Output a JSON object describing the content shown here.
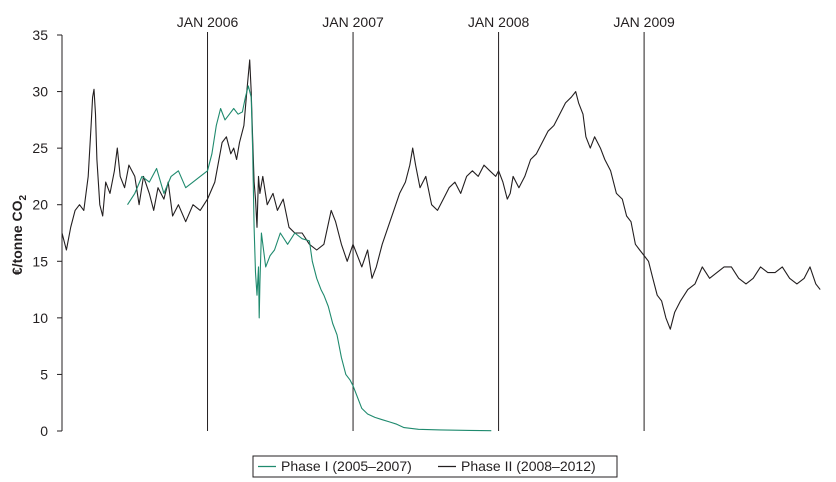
{
  "chart_data": {
    "type": "line",
    "title": "",
    "xlabel": "",
    "ylabel": "€/tonne CO",
    "ylabel_subscript": "2",
    "ylim": [
      0,
      35
    ],
    "yticks": [
      0,
      5,
      10,
      15,
      20,
      25,
      30,
      35
    ],
    "grid": false,
    "legend_position": "bottom-center",
    "x_range_years": [
      2005.0,
      2010.25
    ],
    "vertical_markers": [
      {
        "label": "JAN 2006",
        "x": 2006.0
      },
      {
        "label": "JAN 2007",
        "x": 2007.0
      },
      {
        "label": "JAN 2008",
        "x": 2008.0
      },
      {
        "label": "JAN 2009",
        "x": 2009.0
      }
    ],
    "series": [
      {
        "name": "Phase I (2005–2007)",
        "color": "#1f8a6e",
        "points": [
          [
            2005.45,
            20.0
          ],
          [
            2005.5,
            21.0
          ],
          [
            2005.55,
            22.5
          ],
          [
            2005.6,
            22.0
          ],
          [
            2005.65,
            23.2
          ],
          [
            2005.7,
            21.0
          ],
          [
            2005.75,
            22.5
          ],
          [
            2005.8,
            23.0
          ],
          [
            2005.85,
            21.5
          ],
          [
            2005.9,
            22.0
          ],
          [
            2005.95,
            22.5
          ],
          [
            2006.0,
            23.0
          ],
          [
            2006.03,
            24.5
          ],
          [
            2006.06,
            27.0
          ],
          [
            2006.09,
            28.5
          ],
          [
            2006.12,
            27.5
          ],
          [
            2006.15,
            28.0
          ],
          [
            2006.18,
            28.5
          ],
          [
            2006.21,
            28.0
          ],
          [
            2006.24,
            28.2
          ],
          [
            2006.26,
            29.5
          ],
          [
            2006.28,
            30.5
          ],
          [
            2006.3,
            29.5
          ],
          [
            2006.31,
            25.0
          ],
          [
            2006.32,
            18.0
          ],
          [
            2006.33,
            14.0
          ],
          [
            2006.34,
            12.0
          ],
          [
            2006.35,
            14.5
          ],
          [
            2006.355,
            10.0
          ],
          [
            2006.36,
            13.0
          ],
          [
            2006.37,
            17.5
          ],
          [
            2006.4,
            14.5
          ],
          [
            2006.43,
            15.5
          ],
          [
            2006.46,
            16.0
          ],
          [
            2006.5,
            17.5
          ],
          [
            2006.55,
            16.5
          ],
          [
            2006.6,
            17.5
          ],
          [
            2006.65,
            17.0
          ],
          [
            2006.7,
            16.8
          ],
          [
            2006.72,
            15.0
          ],
          [
            2006.75,
            13.5
          ],
          [
            2006.78,
            12.5
          ],
          [
            2006.8,
            12.0
          ],
          [
            2006.83,
            11.0
          ],
          [
            2006.86,
            9.5
          ],
          [
            2006.89,
            8.5
          ],
          [
            2006.92,
            6.5
          ],
          [
            2006.95,
            5.0
          ],
          [
            2006.98,
            4.5
          ],
          [
            2007.0,
            4.0
          ],
          [
            2007.03,
            3.0
          ],
          [
            2007.06,
            2.0
          ],
          [
            2007.1,
            1.5
          ],
          [
            2007.15,
            1.2
          ],
          [
            2007.2,
            1.0
          ],
          [
            2007.25,
            0.8
          ],
          [
            2007.3,
            0.6
          ],
          [
            2007.35,
            0.3
          ],
          [
            2007.45,
            0.15
          ],
          [
            2007.6,
            0.1
          ],
          [
            2007.8,
            0.05
          ],
          [
            2007.95,
            0.03
          ]
        ]
      },
      {
        "name": "Phase II (2008–2012)",
        "color": "#231f20",
        "points": [
          [
            2005.0,
            17.5
          ],
          [
            2005.03,
            16.0
          ],
          [
            2005.06,
            18.0
          ],
          [
            2005.09,
            19.5
          ],
          [
            2005.12,
            20.0
          ],
          [
            2005.15,
            19.5
          ],
          [
            2005.18,
            22.5
          ],
          [
            2005.2,
            27.0
          ],
          [
            2005.21,
            29.5
          ],
          [
            2005.22,
            30.2
          ],
          [
            2005.23,
            28.0
          ],
          [
            2005.24,
            24.0
          ],
          [
            2005.26,
            20.0
          ],
          [
            2005.28,
            19.0
          ],
          [
            2005.3,
            22.0
          ],
          [
            2005.33,
            21.0
          ],
          [
            2005.36,
            23.0
          ],
          [
            2005.38,
            25.0
          ],
          [
            2005.4,
            22.5
          ],
          [
            2005.43,
            21.5
          ],
          [
            2005.46,
            23.5
          ],
          [
            2005.5,
            22.5
          ],
          [
            2005.53,
            20.0
          ],
          [
            2005.56,
            22.5
          ],
          [
            2005.6,
            21.0
          ],
          [
            2005.63,
            19.5
          ],
          [
            2005.66,
            21.5
          ],
          [
            2005.7,
            20.5
          ],
          [
            2005.73,
            22.0
          ],
          [
            2005.76,
            19.0
          ],
          [
            2005.8,
            20.0
          ],
          [
            2005.85,
            18.5
          ],
          [
            2005.9,
            20.0
          ],
          [
            2005.95,
            19.5
          ],
          [
            2006.0,
            20.5
          ],
          [
            2006.05,
            22.0
          ],
          [
            2006.1,
            25.5
          ],
          [
            2006.13,
            26.0
          ],
          [
            2006.16,
            24.5
          ],
          [
            2006.18,
            25.0
          ],
          [
            2006.2,
            24.0
          ],
          [
            2006.22,
            25.5
          ],
          [
            2006.25,
            27.0
          ],
          [
            2006.27,
            30.0
          ],
          [
            2006.29,
            32.8
          ],
          [
            2006.3,
            30.0
          ],
          [
            2006.31,
            26.0
          ],
          [
            2006.32,
            22.0
          ],
          [
            2006.33,
            20.5
          ],
          [
            2006.34,
            18.0
          ],
          [
            2006.35,
            22.5
          ],
          [
            2006.36,
            21.0
          ],
          [
            2006.38,
            22.5
          ],
          [
            2006.41,
            20.0
          ],
          [
            2006.45,
            21.0
          ],
          [
            2006.48,
            19.5
          ],
          [
            2006.52,
            20.5
          ],
          [
            2006.56,
            18.0
          ],
          [
            2006.6,
            17.5
          ],
          [
            2006.65,
            17.5
          ],
          [
            2006.7,
            16.5
          ],
          [
            2006.75,
            16.0
          ],
          [
            2006.8,
            16.5
          ],
          [
            2006.85,
            19.5
          ],
          [
            2006.88,
            18.5
          ],
          [
            2006.92,
            16.5
          ],
          [
            2006.96,
            15.0
          ],
          [
            2007.0,
            16.5
          ],
          [
            2007.03,
            15.5
          ],
          [
            2007.06,
            14.5
          ],
          [
            2007.1,
            16.0
          ],
          [
            2007.13,
            13.5
          ],
          [
            2007.16,
            14.5
          ],
          [
            2007.2,
            16.5
          ],
          [
            2007.24,
            18.0
          ],
          [
            2007.28,
            19.5
          ],
          [
            2007.32,
            21.0
          ],
          [
            2007.36,
            22.0
          ],
          [
            2007.39,
            23.5
          ],
          [
            2007.41,
            25.0
          ],
          [
            2007.43,
            23.5
          ],
          [
            2007.46,
            21.5
          ],
          [
            2007.5,
            22.5
          ],
          [
            2007.54,
            20.0
          ],
          [
            2007.58,
            19.5
          ],
          [
            2007.62,
            20.5
          ],
          [
            2007.66,
            21.5
          ],
          [
            2007.7,
            22.0
          ],
          [
            2007.74,
            21.0
          ],
          [
            2007.78,
            22.5
          ],
          [
            2007.82,
            23.0
          ],
          [
            2007.86,
            22.5
          ],
          [
            2007.9,
            23.5
          ],
          [
            2007.94,
            23.0
          ],
          [
            2007.98,
            22.5
          ],
          [
            2008.0,
            23.0
          ],
          [
            2008.03,
            22.0
          ],
          [
            2008.06,
            20.5
          ],
          [
            2008.08,
            21.0
          ],
          [
            2008.1,
            22.5
          ],
          [
            2008.14,
            21.5
          ],
          [
            2008.18,
            22.5
          ],
          [
            2008.22,
            24.0
          ],
          [
            2008.26,
            24.5
          ],
          [
            2008.3,
            25.5
          ],
          [
            2008.34,
            26.5
          ],
          [
            2008.38,
            27.0
          ],
          [
            2008.42,
            28.0
          ],
          [
            2008.46,
            29.0
          ],
          [
            2008.5,
            29.5
          ],
          [
            2008.53,
            30.0
          ],
          [
            2008.55,
            29.0
          ],
          [
            2008.58,
            28.0
          ],
          [
            2008.6,
            26.0
          ],
          [
            2008.63,
            25.0
          ],
          [
            2008.66,
            26.0
          ],
          [
            2008.7,
            25.0
          ],
          [
            2008.73,
            24.0
          ],
          [
            2008.77,
            23.0
          ],
          [
            2008.81,
            21.0
          ],
          [
            2008.85,
            20.5
          ],
          [
            2008.88,
            19.0
          ],
          [
            2008.91,
            18.5
          ],
          [
            2008.94,
            16.5
          ],
          [
            2008.97,
            16.0
          ],
          [
            2009.0,
            15.5
          ],
          [
            2009.03,
            15.0
          ],
          [
            2009.06,
            13.5
          ],
          [
            2009.09,
            12.0
          ],
          [
            2009.12,
            11.5
          ],
          [
            2009.15,
            10.0
          ],
          [
            2009.18,
            9.0
          ],
          [
            2009.21,
            10.5
          ],
          [
            2009.25,
            11.5
          ],
          [
            2009.3,
            12.5
          ],
          [
            2009.35,
            13.0
          ],
          [
            2009.4,
            14.5
          ],
          [
            2009.45,
            13.5
          ],
          [
            2009.5,
            14.0
          ],
          [
            2009.55,
            14.5
          ],
          [
            2009.6,
            14.5
          ],
          [
            2009.65,
            13.5
          ],
          [
            2009.7,
            13.0
          ],
          [
            2009.75,
            13.5
          ],
          [
            2009.8,
            14.5
          ],
          [
            2009.85,
            14.0
          ],
          [
            2009.9,
            14.0
          ],
          [
            2009.95,
            14.5
          ],
          [
            2010.0,
            13.5
          ],
          [
            2010.05,
            13.0
          ],
          [
            2010.1,
            13.5
          ],
          [
            2010.14,
            14.5
          ],
          [
            2010.18,
            13.0
          ],
          [
            2010.21,
            12.5
          ]
        ]
      }
    ]
  }
}
